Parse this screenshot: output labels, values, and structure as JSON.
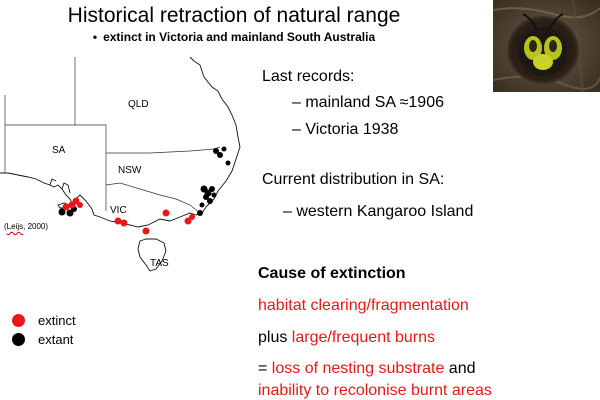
{
  "title": "Historical retraction of natural range",
  "subtitle": {
    "bullet": "•",
    "text": "extinct in Victoria and mainland South Australia"
  },
  "photo": {
    "subject": "bee emerging from nest hole"
  },
  "map": {
    "labels": {
      "qld": "QLD",
      "sa": "SA",
      "nsw": "NSW",
      "vic": "VIC",
      "tas": "TAS"
    },
    "citation_author": "Leijs",
    "citation_rest": ", 2000)",
    "citation_open": "(",
    "colors": {
      "extinct": "#e81818",
      "extant": "#000000"
    }
  },
  "last_records": {
    "heading": "Last records:",
    "items": [
      "– mainland SA ≈1906",
      "– Victoria 1938"
    ]
  },
  "current_distribution": {
    "heading": "Current distribution in SA:",
    "item": "– western Kangaroo Island"
  },
  "cause": {
    "heading": "Cause of extinction",
    "line1": "habitat clearing/fragmentation",
    "line2_prefix": "plus ",
    "line2_red": "large/frequent burns",
    "line3_prefix": "= ",
    "line3_red": "loss of nesting substrate",
    "line3_suffix": " and",
    "line4": "inability to recolonise burnt areas"
  },
  "legend": {
    "extinct": "extinct",
    "extant": "extant"
  }
}
